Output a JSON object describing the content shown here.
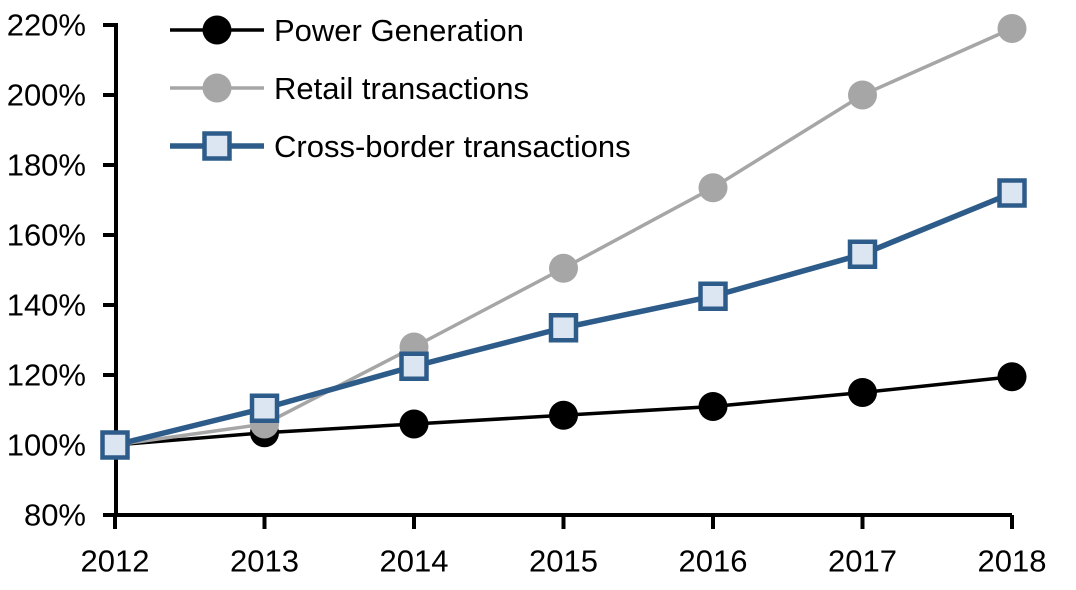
{
  "chart_data": {
    "type": "line",
    "title": "",
    "xlabel": "",
    "ylabel": "",
    "x": {
      "categories": [
        "2012",
        "2013",
        "2014",
        "2015",
        "2016",
        "2017",
        "2018"
      ]
    },
    "y": {
      "min": 80,
      "max": 220,
      "tick_step": 20,
      "unit": "%",
      "tick_labels": [
        "80%",
        "100%",
        "120%",
        "140%",
        "160%",
        "180%",
        "200%",
        "220%"
      ]
    },
    "grid": "off",
    "legend_position": "top-left",
    "axis_color": "#000000",
    "background_color": "#ffffff",
    "series": [
      {
        "name": "Power Generation",
        "line_color": "#000000",
        "marker": "circle",
        "marker_fill": "#000000",
        "values": [
          100,
          103.5,
          106,
          108.5,
          111,
          115,
          119.5
        ]
      },
      {
        "name": "Retail transactions",
        "line_color": "#a6a6a6",
        "marker": "circle",
        "marker_fill": "#a6a6a6",
        "values": [
          100,
          106,
          128,
          150.5,
          173.5,
          200,
          219
        ]
      },
      {
        "name": "Cross-border transactions",
        "line_color": "#2e5c8a",
        "marker": "square",
        "marker_fill": "#dce6f2",
        "values": [
          100,
          110.5,
          122.5,
          133.5,
          142.5,
          154.5,
          172
        ]
      }
    ]
  }
}
